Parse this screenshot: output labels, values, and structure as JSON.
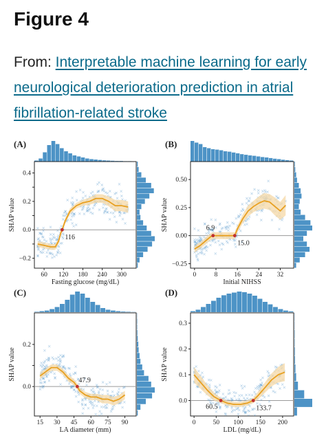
{
  "page": {
    "title": "Figure 4",
    "from_label": "From: ",
    "link_text": "Interpretable machine learning for early neurological deterioration prediction in atrial fibrillation-related stroke"
  },
  "colors": {
    "scatter": "#4a90c8",
    "hist": "#4d93c6",
    "curve": "#e8a020",
    "band": "#f6d8a6",
    "zero": "#9a9a9a",
    "marker": "#c03030"
  },
  "chart_data": [
    {
      "panel": "(A)",
      "type": "scatter",
      "xlabel": "Fasting glucose (mg/dL)",
      "ylabel": "SHAP value",
      "xlim": [
        30,
        345
      ],
      "ylim": [
        -0.27,
        0.48
      ],
      "xticks": [
        60,
        120,
        180,
        240,
        300
      ],
      "yticks": [
        -0.2,
        -0.1,
        0.0,
        0.1,
        0.2,
        0.3,
        0.4
      ],
      "ytick_labels": [
        "−0.2",
        "",
        "0.0",
        "",
        "0.2",
        "",
        "0.4"
      ],
      "threshold": {
        "x": 116,
        "y": 0.0,
        "label": "116"
      },
      "curve": {
        "x": [
          40,
          60,
          80,
          95,
          105,
          112,
          116,
          125,
          140,
          160,
          180,
          200,
          220,
          240,
          260,
          280,
          300,
          320
        ],
        "y": [
          -0.1,
          -0.11,
          -0.12,
          -0.12,
          -0.08,
          -0.02,
          0.0,
          0.06,
          0.13,
          0.17,
          0.19,
          0.2,
          0.22,
          0.22,
          0.2,
          0.17,
          0.17,
          0.16
        ],
        "band": [
          0.02,
          0.02,
          0.02,
          0.02,
          0.02,
          0.02,
          0.02,
          0.02,
          0.02,
          0.02,
          0.02,
          0.025,
          0.03,
          0.03,
          0.035,
          0.04,
          0.04,
          0.04
        ]
      },
      "top_hist": [
        0.05,
        0.15,
        0.45,
        0.8,
        1.0,
        0.85,
        0.65,
        0.5,
        0.4,
        0.3,
        0.25,
        0.2,
        0.15,
        0.12,
        0.1,
        0.08,
        0.06,
        0.05,
        0.04,
        0.03,
        0.03,
        0.02,
        0.02,
        0.01
      ],
      "right_hist": [
        0.05,
        0.15,
        0.35,
        0.6,
        0.85,
        1.0,
        0.8,
        0.55,
        0.35,
        0.2,
        0.15,
        0.25,
        0.45,
        0.7,
        0.95,
        0.8,
        0.5,
        0.25,
        0.1,
        0.05
      ]
    },
    {
      "panel": "(B)",
      "type": "scatter",
      "xlabel": "Initial NIHSS",
      "ylabel": "SHAP value",
      "xlim": [
        -1.5,
        37
      ],
      "ylim": [
        -0.29,
        0.66
      ],
      "xticks": [
        0,
        8,
        16,
        24,
        32
      ],
      "yticks": [
        -0.25,
        0.0,
        0.25,
        0.5
      ],
      "ytick_labels": [
        "−0.25",
        "0.00",
        "0.25",
        "0.50"
      ],
      "thresholds": [
        {
          "x": 6.9,
          "y": 0.0,
          "label": "6.9"
        },
        {
          "x": 15.0,
          "y": 0.0,
          "label": "15.0"
        }
      ],
      "curve": {
        "x": [
          0,
          2,
          4,
          6,
          6.9,
          8,
          10,
          12,
          14,
          15,
          16,
          18,
          20,
          22,
          24,
          26,
          28,
          30,
          32,
          34
        ],
        "y": [
          -0.12,
          -0.09,
          -0.05,
          -0.01,
          0.0,
          0.0,
          0.0,
          0.0,
          0.0,
          0.0,
          0.06,
          0.15,
          0.22,
          0.26,
          0.29,
          0.31,
          0.3,
          0.26,
          0.22,
          0.27
        ],
        "band": [
          0.03,
          0.03,
          0.03,
          0.03,
          0.03,
          0.03,
          0.03,
          0.03,
          0.03,
          0.03,
          0.03,
          0.04,
          0.05,
          0.05,
          0.06,
          0.07,
          0.07,
          0.08,
          0.08,
          0.09
        ]
      },
      "top_hist": [
        1.0,
        0.92,
        0.85,
        0.7,
        0.65,
        0.6,
        0.58,
        0.55,
        0.5,
        0.48,
        0.44,
        0.4,
        0.36,
        0.33,
        0.3,
        0.28,
        0.25,
        0.22,
        0.2,
        0.17,
        0.14,
        0.12,
        0.09,
        0.07,
        0.05
      ],
      "right_hist": [
        0.1,
        0.3,
        0.6,
        0.85,
        0.7,
        0.5,
        0.7,
        1.0,
        0.9,
        0.6,
        0.35,
        0.25,
        0.3,
        0.4,
        0.35,
        0.25,
        0.15,
        0.1,
        0.05,
        0.03
      ]
    },
    {
      "panel": "(C)",
      "type": "scatter",
      "xlabel": "LA diameter (mm)",
      "ylabel": "SHAP value",
      "xlim": [
        10,
        100
      ],
      "ylim": [
        -0.14,
        0.35
      ],
      "xticks": [
        15,
        30,
        45,
        60,
        75,
        90
      ],
      "yticks": [
        0.0,
        0.1,
        0.2
      ],
      "ytick_labels": [
        "0.0",
        "",
        "0.2"
      ],
      "threshold": {
        "x": 47.9,
        "y": 0.0,
        "label": "47.9"
      },
      "curve": {
        "x": [
          15,
          20,
          25,
          30,
          35,
          40,
          45,
          47.9,
          50,
          55,
          60,
          65,
          70,
          75,
          80,
          85,
          90
        ],
        "y": [
          0.05,
          0.07,
          0.09,
          0.09,
          0.07,
          0.04,
          0.02,
          0.0,
          -0.02,
          -0.04,
          -0.05,
          -0.05,
          -0.06,
          -0.06,
          -0.07,
          -0.06,
          -0.04
        ],
        "band": [
          0.015,
          0.015,
          0.015,
          0.015,
          0.015,
          0.015,
          0.015,
          0.015,
          0.015,
          0.015,
          0.015,
          0.015,
          0.02,
          0.02,
          0.02,
          0.02,
          0.02
        ]
      },
      "top_hist": [
        0.02,
        0.05,
        0.08,
        0.15,
        0.25,
        0.4,
        0.6,
        0.85,
        1.0,
        0.9,
        0.7,
        0.5,
        0.35,
        0.2,
        0.12,
        0.08,
        0.05,
        0.03,
        0.02,
        0.01
      ],
      "right_hist": [
        0.05,
        0.2,
        0.5,
        0.85,
        1.0,
        0.8,
        0.65,
        0.4,
        0.3,
        0.2,
        0.15,
        0.1,
        0.08,
        0.05,
        0.03,
        0.02,
        0.02,
        0.01
      ]
    },
    {
      "panel": "(D)",
      "type": "scatter",
      "xlabel": "LDL (mg/dL)",
      "ylabel": "SHAP value",
      "xlim": [
        -8,
        225
      ],
      "ylim": [
        -0.06,
        0.34
      ],
      "xticks": [
        0,
        50,
        100,
        150,
        200
      ],
      "yticks": [
        0.0,
        0.1,
        0.2,
        0.3
      ],
      "ytick_labels": [
        "0.0",
        "0.1",
        "0.2",
        "0.3"
      ],
      "thresholds": [
        {
          "x": 60.5,
          "y": 0.0,
          "label": "60.5"
        },
        {
          "x": 133.7,
          "y": 0.0,
          "label": "133.7"
        }
      ],
      "curve": {
        "x": [
          0,
          15,
          30,
          45,
          60.5,
          75,
          90,
          105,
          120,
          133.7,
          145,
          160,
          175,
          190,
          205
        ],
        "y": [
          0.1,
          0.07,
          0.04,
          0.015,
          0.0,
          -0.01,
          -0.015,
          -0.015,
          -0.01,
          0.0,
          0.02,
          0.05,
          0.08,
          0.1,
          0.11
        ],
        "band": [
          0.03,
          0.025,
          0.02,
          0.015,
          0.01,
          0.01,
          0.01,
          0.01,
          0.01,
          0.01,
          0.015,
          0.02,
          0.025,
          0.03,
          0.035
        ]
      },
      "top_hist": [
        0.05,
        0.12,
        0.25,
        0.4,
        0.55,
        0.7,
        0.82,
        0.9,
        0.95,
        1.0,
        0.97,
        0.9,
        0.8,
        0.65,
        0.5,
        0.38,
        0.25,
        0.15,
        0.08,
        0.04
      ],
      "right_hist": [
        0.15,
        1.0,
        0.55,
        0.2,
        0.1,
        0.06,
        0.04,
        0.03,
        0.02,
        0.02,
        0.01,
        0.01
      ]
    }
  ]
}
